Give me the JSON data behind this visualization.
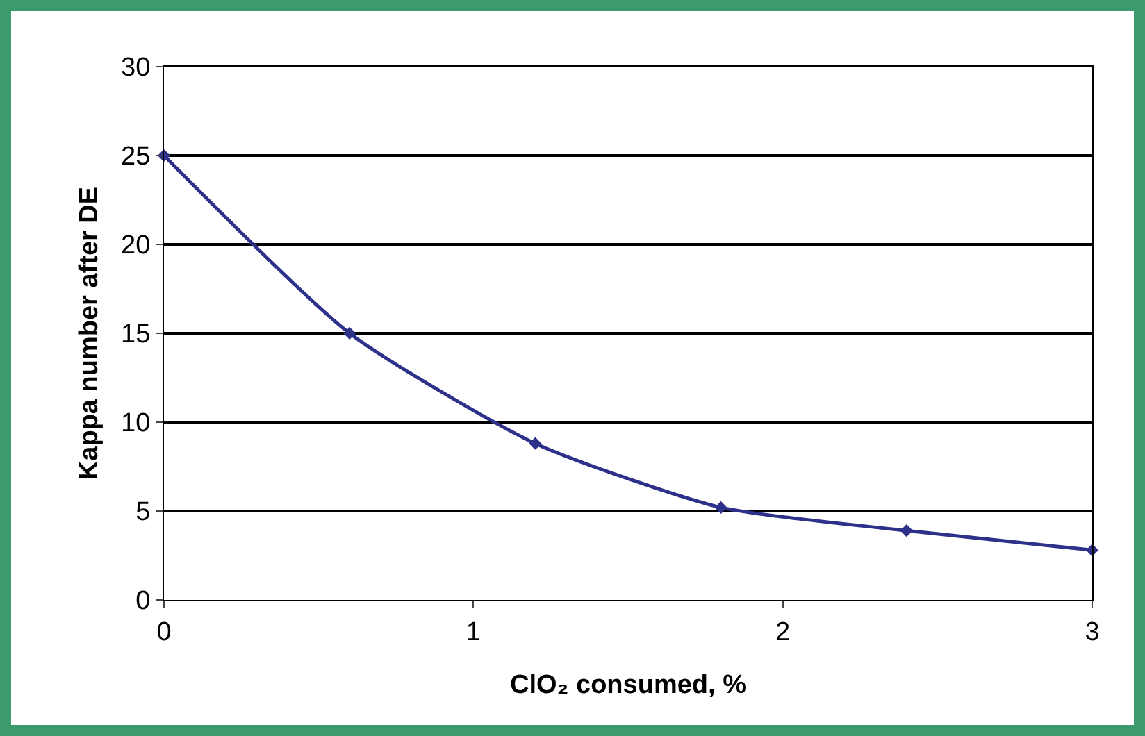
{
  "chart_data": {
    "type": "line",
    "xlabel": "ClO₂ consumed, %",
    "ylabel": "Kappa number after DE",
    "x": [
      0,
      0.6,
      1.2,
      1.8,
      2.4,
      3
    ],
    "series": [
      {
        "color": "#2e3189",
        "values": [
          25,
          15,
          8.8,
          5.2,
          3.9,
          2.8
        ]
      }
    ],
    "xlim": [
      0,
      3
    ],
    "xticks": [
      0,
      1,
      2,
      3
    ],
    "ylim": [
      0,
      30
    ],
    "yticks": [
      0,
      5,
      10,
      15,
      20,
      25,
      30
    ],
    "grid": "y",
    "marker": "diamond",
    "line_style": "solid",
    "legend": false
  }
}
